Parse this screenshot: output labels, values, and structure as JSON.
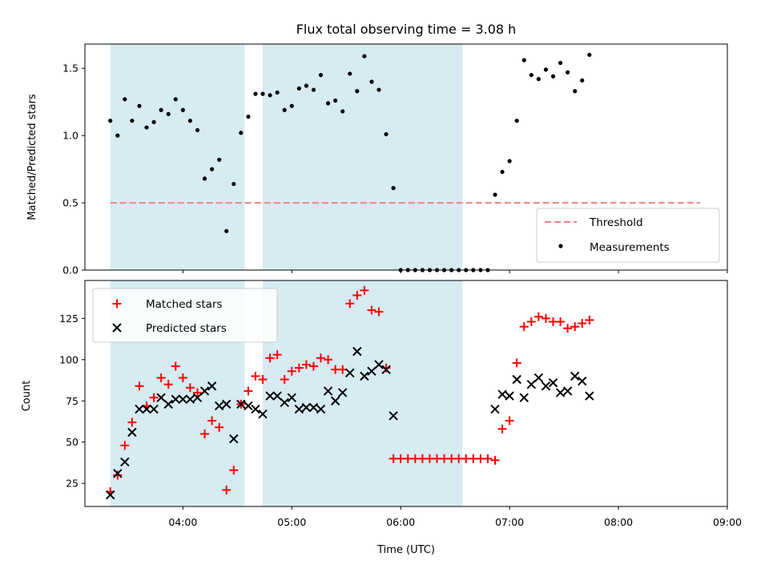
{
  "chart_data": [
    {
      "type": "scatter",
      "title": "Flux total observing time = 3.08 h",
      "xlabel": "",
      "ylabel": "Matched/Predicted stars",
      "xlim": [
        "03:06",
        "09:00"
      ],
      "ylim": [
        0,
        1.68
      ],
      "yticks": [
        0,
        0.5,
        1.0,
        1.5
      ],
      "ytick_labels": [
        "0.0",
        "0.5",
        "1.0",
        "1.5"
      ],
      "xticks": [
        "04:00",
        "05:00",
        "06:00",
        "07:00",
        "08:00",
        "09:00"
      ],
      "shaded_intervals": [
        [
          "03:20",
          "04:34"
        ],
        [
          "04:44",
          "06:34"
        ]
      ],
      "threshold": {
        "y": 0.5,
        "x_start": "03:20",
        "x_end": "08:45",
        "color": "#f08080"
      },
      "legend_position": "lower-right",
      "series": [
        {
          "name": "Threshold",
          "kind": "dashed-line"
        },
        {
          "name": "Measurements",
          "kind": "points",
          "color": "#000000",
          "points": [
            [
              "03:20",
              1.11
            ],
            [
              "03:24",
              1.0
            ],
            [
              "03:28",
              1.27
            ],
            [
              "03:32",
              1.11
            ],
            [
              "03:36",
              1.22
            ],
            [
              "03:40",
              1.06
            ],
            [
              "03:44",
              1.1
            ],
            [
              "03:48",
              1.19
            ],
            [
              "03:52",
              1.16
            ],
            [
              "03:56",
              1.27
            ],
            [
              "04:00",
              1.19
            ],
            [
              "04:04",
              1.11
            ],
            [
              "04:08",
              1.04
            ],
            [
              "04:12",
              0.68
            ],
            [
              "04:16",
              0.75
            ],
            [
              "04:20",
              0.82
            ],
            [
              "04:24",
              0.29
            ],
            [
              "04:28",
              0.64
            ],
            [
              "04:32",
              1.02
            ],
            [
              "04:36",
              1.14
            ],
            [
              "04:40",
              1.31
            ],
            [
              "04:44",
              1.31
            ],
            [
              "04:48",
              1.3
            ],
            [
              "04:52",
              1.32
            ],
            [
              "04:56",
              1.19
            ],
            [
              "05:00",
              1.22
            ],
            [
              "05:04",
              1.35
            ],
            [
              "05:08",
              1.37
            ],
            [
              "05:12",
              1.34
            ],
            [
              "05:16",
              1.45
            ],
            [
              "05:20",
              1.24
            ],
            [
              "05:24",
              1.26
            ],
            [
              "05:28",
              1.18
            ],
            [
              "05:32",
              1.46
            ],
            [
              "05:36",
              1.33
            ],
            [
              "05:40",
              1.59
            ],
            [
              "05:44",
              1.4
            ],
            [
              "05:48",
              1.34
            ],
            [
              "05:52",
              1.01
            ],
            [
              "05:56",
              0.61
            ],
            [
              "06:00",
              0.0
            ],
            [
              "06:04",
              0.0
            ],
            [
              "06:08",
              0.0
            ],
            [
              "06:12",
              0.0
            ],
            [
              "06:16",
              0.0
            ],
            [
              "06:20",
              0.0
            ],
            [
              "06:24",
              0.0
            ],
            [
              "06:28",
              0.0
            ],
            [
              "06:32",
              0.0
            ],
            [
              "06:36",
              0.0
            ],
            [
              "06:40",
              0.0
            ],
            [
              "06:44",
              0.0
            ],
            [
              "06:48",
              0.0
            ],
            [
              "06:52",
              0.56
            ],
            [
              "06:56",
              0.73
            ],
            [
              "07:00",
              0.81
            ],
            [
              "07:04",
              1.11
            ],
            [
              "07:08",
              1.56
            ],
            [
              "07:12",
              1.45
            ],
            [
              "07:16",
              1.42
            ],
            [
              "07:20",
              1.49
            ],
            [
              "07:24",
              1.44
            ],
            [
              "07:28",
              1.54
            ],
            [
              "07:32",
              1.47
            ],
            [
              "07:36",
              1.33
            ],
            [
              "07:40",
              1.41
            ],
            [
              "07:44",
              1.6
            ]
          ]
        }
      ]
    },
    {
      "type": "scatter",
      "title": "",
      "xlabel": "Time (UTC)",
      "ylabel": "Count",
      "xlim": [
        "03:06",
        "09:00"
      ],
      "ylim": [
        11,
        148
      ],
      "yticks": [
        25,
        50,
        75,
        100,
        125
      ],
      "ytick_labels": [
        "25",
        "50",
        "75",
        "100",
        "125"
      ],
      "xticks": [
        "04:00",
        "05:00",
        "06:00",
        "07:00",
        "08:00",
        "09:00"
      ],
      "shaded_intervals": [
        [
          "03:20",
          "04:34"
        ],
        [
          "04:44",
          "06:34"
        ]
      ],
      "legend_position": "upper-left",
      "series": [
        {
          "name": "Matched stars",
          "marker": "plus",
          "color": "#ff0000",
          "points": [
            [
              "03:20",
              20
            ],
            [
              "03:24",
              30
            ],
            [
              "03:28",
              48
            ],
            [
              "03:32",
              62
            ],
            [
              "03:36",
              84
            ],
            [
              "03:40",
              72
            ],
            [
              "03:44",
              77
            ],
            [
              "03:48",
              89
            ],
            [
              "03:52",
              85
            ],
            [
              "03:56",
              96
            ],
            [
              "04:00",
              89
            ],
            [
              "04:04",
              83
            ],
            [
              "04:08",
              80
            ],
            [
              "04:12",
              55
            ],
            [
              "04:16",
              63
            ],
            [
              "04:20",
              59
            ],
            [
              "04:24",
              21
            ],
            [
              "04:28",
              33
            ],
            [
              "04:32",
              73
            ],
            [
              "04:36",
              81
            ],
            [
              "04:40",
              90
            ],
            [
              "04:44",
              88
            ],
            [
              "04:48",
              101
            ],
            [
              "04:52",
              103
            ],
            [
              "04:56",
              88
            ],
            [
              "05:00",
              93
            ],
            [
              "05:04",
              95
            ],
            [
              "05:08",
              97
            ],
            [
              "05:12",
              96
            ],
            [
              "05:16",
              101
            ],
            [
              "05:20",
              100
            ],
            [
              "05:24",
              94
            ],
            [
              "05:28",
              94
            ],
            [
              "05:32",
              134
            ],
            [
              "05:36",
              139
            ],
            [
              "05:40",
              142
            ],
            [
              "05:44",
              130
            ],
            [
              "05:48",
              129
            ],
            [
              "05:52",
              95
            ],
            [
              "05:56",
              40
            ],
            [
              "06:00",
              40
            ],
            [
              "06:04",
              40
            ],
            [
              "06:08",
              40
            ],
            [
              "06:12",
              40
            ],
            [
              "06:16",
              40
            ],
            [
              "06:20",
              40
            ],
            [
              "06:24",
              40
            ],
            [
              "06:28",
              40
            ],
            [
              "06:32",
              40
            ],
            [
              "06:36",
              40
            ],
            [
              "06:40",
              40
            ],
            [
              "06:44",
              40
            ],
            [
              "06:48",
              40
            ],
            [
              "06:52",
              39
            ],
            [
              "06:56",
              58
            ],
            [
              "07:00",
              63
            ],
            [
              "07:04",
              98
            ],
            [
              "07:08",
              120
            ],
            [
              "07:12",
              123
            ],
            [
              "07:16",
              126
            ],
            [
              "07:20",
              125
            ],
            [
              "07:24",
              123
            ],
            [
              "07:28",
              123
            ],
            [
              "07:32",
              119
            ],
            [
              "07:36",
              120
            ],
            [
              "07:40",
              122
            ],
            [
              "07:44",
              124
            ]
          ]
        },
        {
          "name": "Predicted stars",
          "marker": "x",
          "color": "#000000",
          "points": [
            [
              "03:20",
              18
            ],
            [
              "03:24",
              31
            ],
            [
              "03:28",
              38
            ],
            [
              "03:32",
              56
            ],
            [
              "03:36",
              70
            ],
            [
              "03:40",
              70
            ],
            [
              "03:44",
              70
            ],
            [
              "03:48",
              77
            ],
            [
              "03:52",
              73
            ],
            [
              "03:56",
              76
            ],
            [
              "04:00",
              76
            ],
            [
              "04:04",
              76
            ],
            [
              "04:08",
              77
            ],
            [
              "04:12",
              81
            ],
            [
              "04:16",
              84
            ],
            [
              "04:20",
              72
            ],
            [
              "04:24",
              73
            ],
            [
              "04:28",
              52
            ],
            [
              "04:32",
              73
            ],
            [
              "04:36",
              72
            ],
            [
              "04:40",
              70
            ],
            [
              "04:44",
              67
            ],
            [
              "04:48",
              78
            ],
            [
              "04:52",
              78
            ],
            [
              "04:56",
              74
            ],
            [
              "05:00",
              77
            ],
            [
              "05:04",
              70
            ],
            [
              "05:08",
              71
            ],
            [
              "05:12",
              71
            ],
            [
              "05:16",
              70
            ],
            [
              "05:20",
              81
            ],
            [
              "05:24",
              75
            ],
            [
              "05:28",
              80
            ],
            [
              "05:32",
              92
            ],
            [
              "05:36",
              105
            ],
            [
              "05:40",
              90
            ],
            [
              "05:44",
              93
            ],
            [
              "05:48",
              97
            ],
            [
              "05:52",
              94
            ],
            [
              "05:56",
              66
            ],
            [
              "06:52",
              70
            ],
            [
              "06:56",
              79
            ],
            [
              "07:00",
              78
            ],
            [
              "07:04",
              88
            ],
            [
              "07:08",
              77
            ],
            [
              "07:12",
              85
            ],
            [
              "07:16",
              89
            ],
            [
              "07:20",
              84
            ],
            [
              "07:24",
              86
            ],
            [
              "07:28",
              80
            ],
            [
              "07:32",
              81
            ],
            [
              "07:36",
              90
            ],
            [
              "07:40",
              87
            ],
            [
              "07:44",
              78
            ]
          ]
        }
      ]
    }
  ]
}
